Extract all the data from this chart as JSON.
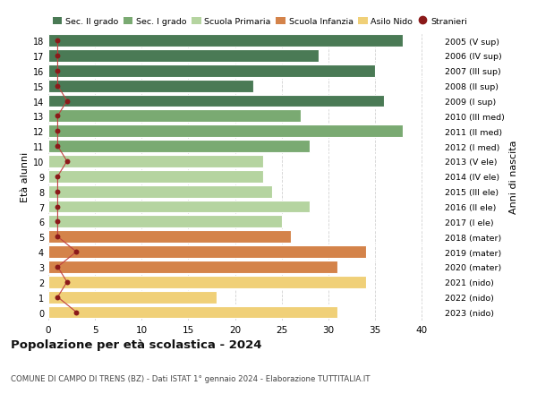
{
  "ages": [
    18,
    17,
    16,
    15,
    14,
    13,
    12,
    11,
    10,
    9,
    8,
    7,
    6,
    5,
    4,
    3,
    2,
    1,
    0
  ],
  "right_labels": [
    "2005 (V sup)",
    "2006 (IV sup)",
    "2007 (III sup)",
    "2008 (II sup)",
    "2009 (I sup)",
    "2010 (III med)",
    "2011 (II med)",
    "2012 (I med)",
    "2013 (V ele)",
    "2014 (IV ele)",
    "2015 (III ele)",
    "2016 (II ele)",
    "2017 (I ele)",
    "2018 (mater)",
    "2019 (mater)",
    "2020 (mater)",
    "2021 (nido)",
    "2022 (nido)",
    "2023 (nido)"
  ],
  "bar_values": [
    38,
    29,
    35,
    22,
    36,
    27,
    38,
    28,
    23,
    23,
    24,
    28,
    25,
    26,
    34,
    31,
    34,
    18,
    31
  ],
  "bar_colors": [
    "#4a7a55",
    "#4a7a55",
    "#4a7a55",
    "#4a7a55",
    "#4a7a55",
    "#7aaa72",
    "#7aaa72",
    "#7aaa72",
    "#b5d4a0",
    "#b5d4a0",
    "#b5d4a0",
    "#b5d4a0",
    "#b5d4a0",
    "#d4834a",
    "#d4834a",
    "#d4834a",
    "#f0d078",
    "#f0d078",
    "#f0d078"
  ],
  "stranieri_values": [
    1,
    1,
    1,
    1,
    2,
    1,
    1,
    1,
    2,
    1,
    1,
    1,
    1,
    1,
    3,
    1,
    2,
    1,
    3
  ],
  "stranieri_color": "#8b1a1a",
  "stranieri_line_color": "#c04040",
  "legend_labels": [
    "Sec. II grado",
    "Sec. I grado",
    "Scuola Primaria",
    "Scuola Infanzia",
    "Asilo Nido",
    "Stranieri"
  ],
  "legend_colors": [
    "#4a7a55",
    "#7aaa72",
    "#b5d4a0",
    "#d4834a",
    "#f0d078",
    "#8b1a1a"
  ],
  "title": "Popolazione per età scolastica - 2024",
  "subtitle": "COMUNE DI CAMPO DI TRENS (BZ) - Dati ISTAT 1° gennaio 2024 - Elaborazione TUTTITALIA.IT",
  "ylabel_left": "Età alunni",
  "ylabel_right": "Anni di nascita",
  "xlim": [
    0,
    42
  ],
  "bar_height": 0.82,
  "background_color": "#ffffff",
  "grid_color": "#cccccc"
}
